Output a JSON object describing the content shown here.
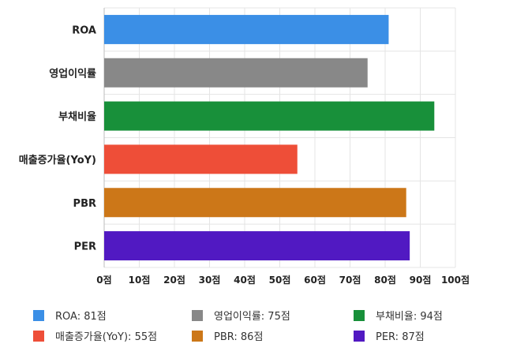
{
  "chart_data": {
    "type": "bar",
    "orientation": "horizontal",
    "categories": [
      "ROA",
      "영업이익률",
      "부채비율",
      "매출증가율(YoY)",
      "PBR",
      "PER"
    ],
    "values": [
      81,
      75,
      94,
      55,
      86,
      87
    ],
    "unit": "점",
    "xlim": [
      0,
      100
    ],
    "x_ticks": [
      0,
      10,
      20,
      30,
      40,
      50,
      60,
      70,
      80,
      90,
      100
    ],
    "x_tick_labels": [
      "0점",
      "10점",
      "20점",
      "30점",
      "40점",
      "50점",
      "60점",
      "70점",
      "80점",
      "90점",
      "100점"
    ],
    "colors": [
      "#3b8fe6",
      "#888888",
      "#18903a",
      "#ee4e38",
      "#cc7718",
      "#5119c2"
    ],
    "grid": true,
    "legend_position": "bottom",
    "legend": [
      "ROA: 81점",
      "영업이익률: 75점",
      "부채비율: 94점",
      "매출증가율(YoY): 55점",
      "PBR: 86점",
      "PER: 87점"
    ]
  }
}
